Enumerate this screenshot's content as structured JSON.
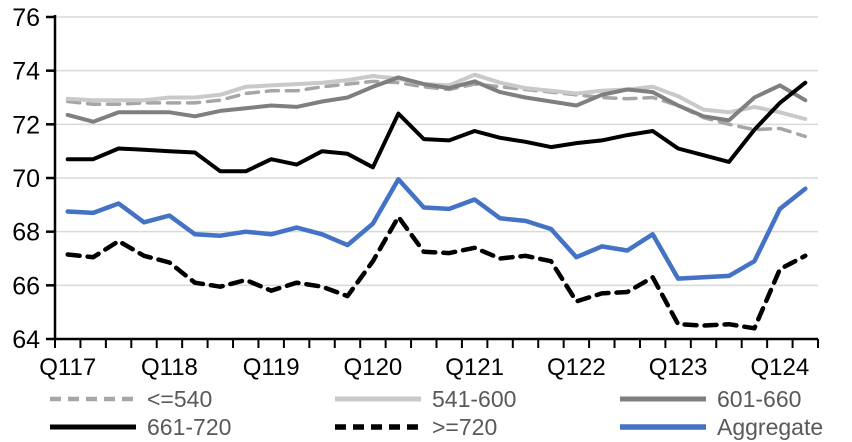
{
  "chart_data": {
    "type": "line",
    "title": "",
    "xlabel": "",
    "ylabel": "",
    "ylim": [
      64,
      76
    ],
    "y_ticks": [
      64,
      66,
      68,
      70,
      72,
      74,
      76
    ],
    "grid": "horizontal gridlines on",
    "legend_position": "bottom, 2 rows x 3 columns",
    "categories": [
      "Q117",
      "Q217",
      "Q317",
      "Q417",
      "Q118",
      "Q218",
      "Q318",
      "Q418",
      "Q119",
      "Q219",
      "Q319",
      "Q419",
      "Q120",
      "Q220",
      "Q320",
      "Q420",
      "Q121",
      "Q221",
      "Q321",
      "Q421",
      "Q122",
      "Q222",
      "Q322",
      "Q422",
      "Q123",
      "Q223",
      "Q323",
      "Q423",
      "Q124",
      "Q224"
    ],
    "x_tick_indices": [
      0,
      4,
      8,
      12,
      16,
      20,
      24,
      28
    ],
    "x_tick_labels": [
      "Q117",
      "Q118",
      "Q119",
      "Q120",
      "Q121",
      "Q122",
      "Q123",
      "Q124"
    ],
    "series": [
      {
        "name": "<=540",
        "color": "#a6a6a6",
        "dash": "dashed",
        "width": 3.5,
        "values": [
          72.85,
          72.75,
          72.75,
          72.8,
          72.8,
          72.8,
          72.9,
          73.15,
          73.25,
          73.25,
          73.4,
          73.5,
          73.6,
          73.55,
          73.4,
          73.3,
          73.5,
          73.4,
          73.3,
          73.2,
          73.1,
          73.0,
          72.95,
          73.0,
          72.7,
          72.25,
          72.0,
          71.8,
          71.85,
          71.55
        ]
      },
      {
        "name": "541-600",
        "color": "#c9c9c9",
        "dash": "solid",
        "width": 4,
        "values": [
          72.95,
          72.9,
          72.9,
          72.9,
          73.0,
          73.0,
          73.1,
          73.4,
          73.45,
          73.5,
          73.55,
          73.65,
          73.8,
          73.7,
          73.5,
          73.45,
          73.85,
          73.55,
          73.35,
          73.25,
          73.15,
          73.25,
          73.3,
          73.4,
          73.05,
          72.55,
          72.45,
          72.65,
          72.45,
          72.2
        ]
      },
      {
        "name": "601-660",
        "color": "#7f7f7f",
        "dash": "solid",
        "width": 4,
        "values": [
          72.35,
          72.1,
          72.45,
          72.45,
          72.45,
          72.3,
          72.5,
          72.6,
          72.7,
          72.65,
          72.85,
          73.0,
          73.4,
          73.75,
          73.5,
          73.35,
          73.6,
          73.2,
          73.0,
          72.85,
          72.7,
          73.1,
          73.3,
          73.2,
          72.7,
          72.3,
          72.15,
          73.0,
          73.45,
          72.9
        ]
      },
      {
        "name": "661-720",
        "color": "#000000",
        "dash": "solid",
        "width": 4,
        "values": [
          70.7,
          70.7,
          71.1,
          71.05,
          71.0,
          70.95,
          70.25,
          70.25,
          70.7,
          70.5,
          71.0,
          70.9,
          70.4,
          72.4,
          71.45,
          71.4,
          71.75,
          71.5,
          71.35,
          71.15,
          71.3,
          71.4,
          71.6,
          71.75,
          71.1,
          70.85,
          70.6,
          71.8,
          72.8,
          73.55
        ]
      },
      {
        "name": ">=720",
        "color": "#000000",
        "dash": "dashed",
        "width": 4.5,
        "values": [
          67.15,
          67.05,
          67.65,
          67.1,
          66.85,
          66.1,
          65.95,
          66.2,
          65.8,
          66.1,
          65.95,
          65.6,
          66.9,
          68.55,
          67.25,
          67.2,
          67.4,
          67.0,
          67.1,
          66.9,
          65.4,
          65.7,
          65.75,
          66.3,
          64.55,
          64.5,
          64.55,
          64.4,
          66.6,
          67.1
        ]
      },
      {
        "name": "Aggregate",
        "color": "#4472c4",
        "dash": "solid",
        "width": 4.5,
        "values": [
          68.75,
          68.7,
          69.05,
          68.35,
          68.6,
          67.9,
          67.85,
          68.0,
          67.9,
          68.15,
          67.9,
          67.5,
          68.3,
          69.95,
          68.9,
          68.85,
          69.2,
          68.5,
          68.4,
          68.1,
          67.05,
          67.45,
          67.3,
          67.9,
          66.25,
          66.3,
          66.35,
          66.9,
          68.85,
          69.6
        ]
      }
    ]
  },
  "style": {
    "grid_color": "#d9d9d9",
    "axis_color": "#000000",
    "axis_text_color": "#000000",
    "legend_text_color": "#595959",
    "background": "#ffffff"
  }
}
